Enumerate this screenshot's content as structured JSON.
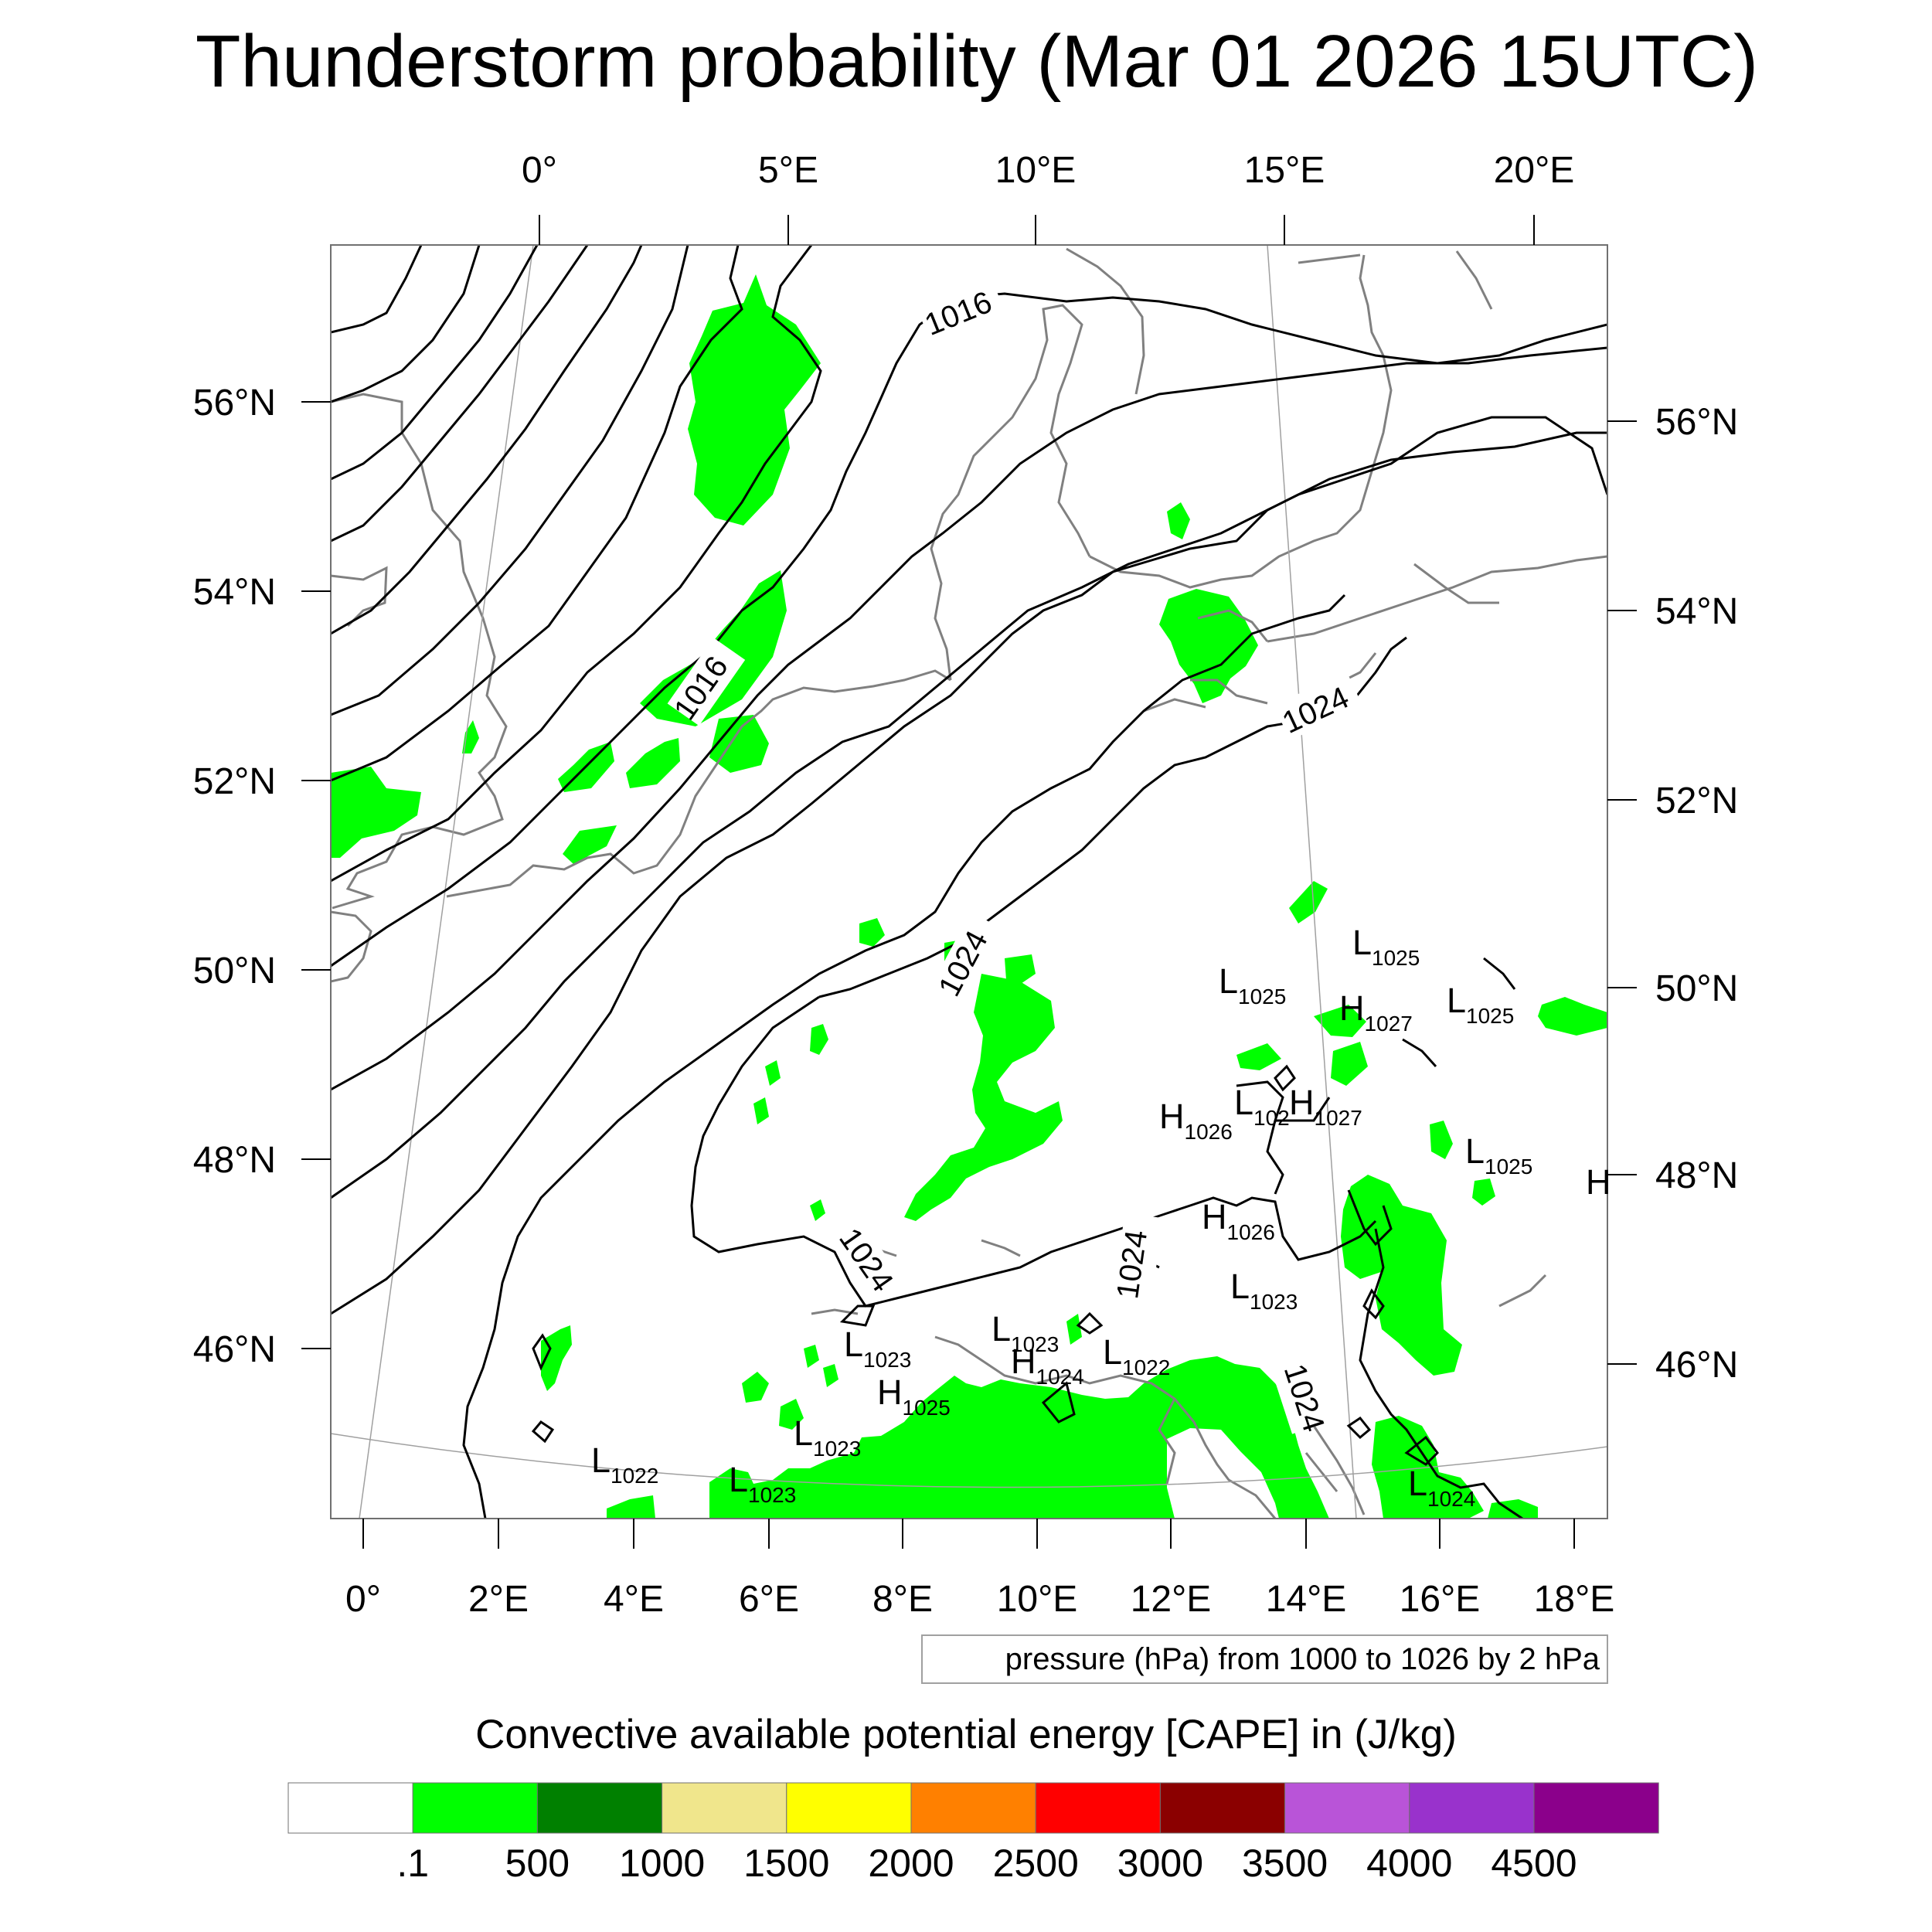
{
  "title": "Thunderstorm probability (Mar 01 2026 15UTC)",
  "top_lon_labels": [
    "0°",
    "5°E",
    "10°E",
    "15°E",
    "20°E"
  ],
  "bottom_lon_labels": [
    "0°",
    "2°E",
    "4°E",
    "6°E",
    "8°E",
    "10°E",
    "12°E",
    "14°E",
    "16°E",
    "18°E"
  ],
  "left_lat_labels": [
    "56°N",
    "54°N",
    "52°N",
    "50°N",
    "48°N",
    "46°N"
  ],
  "right_lat_labels": [
    "56°N",
    "54°N",
    "52°N",
    "50°N",
    "48°N",
    "46°N"
  ],
  "isobar_labels": [
    "1016",
    "1016",
    "1024",
    "1024",
    "1024",
    "1024",
    "1024"
  ],
  "pressure_centers": [
    {
      "type": "L",
      "value": "1025"
    },
    {
      "type": "L",
      "value": "1025"
    },
    {
      "type": "L",
      "value": "1025"
    },
    {
      "type": "H",
      "value": "1027"
    },
    {
      "type": "H",
      "value": "1026"
    },
    {
      "type": "L",
      "value": "102"
    },
    {
      "type": "H",
      "value": "1027"
    },
    {
      "type": "L",
      "value": "1025"
    },
    {
      "type": "H",
      "value": ""
    },
    {
      "type": "H",
      "value": "1026"
    },
    {
      "type": "L",
      "value": "1023"
    },
    {
      "type": "L",
      "value": "1023"
    },
    {
      "type": "L",
      "value": "1023"
    },
    {
      "type": "H",
      "value": "1024"
    },
    {
      "type": "L",
      "value": "1022"
    },
    {
      "type": "H",
      "value": "1025"
    },
    {
      "type": "L",
      "value": "1023"
    },
    {
      "type": "L",
      "value": "1022"
    },
    {
      "type": "L",
      "value": "1023"
    },
    {
      "type": "L",
      "value": "1024"
    }
  ],
  "contour_info": "pressure (hPa) from 1000 to 1026 by 2 hPa",
  "colorbar": {
    "title": "Convective available potential energy [CAPE] in (J/kg)",
    "labels": [
      ".1",
      "500",
      "1000",
      "1500",
      "2000",
      "2500",
      "3000",
      "3500",
      "4000",
      "4500"
    ],
    "colors": [
      "#ffffff",
      "#00ff00",
      "#008000",
      "#f0e68c",
      "#ffff00",
      "#ff8000",
      "#ff0000",
      "#8b0000",
      "#b954d8",
      "#9932cc",
      "#8b008b"
    ]
  },
  "colors": {
    "cape_fill": "#00ff00",
    "isobar": "#000000",
    "coastline": "#808080",
    "grid": "#a0a0a0"
  }
}
